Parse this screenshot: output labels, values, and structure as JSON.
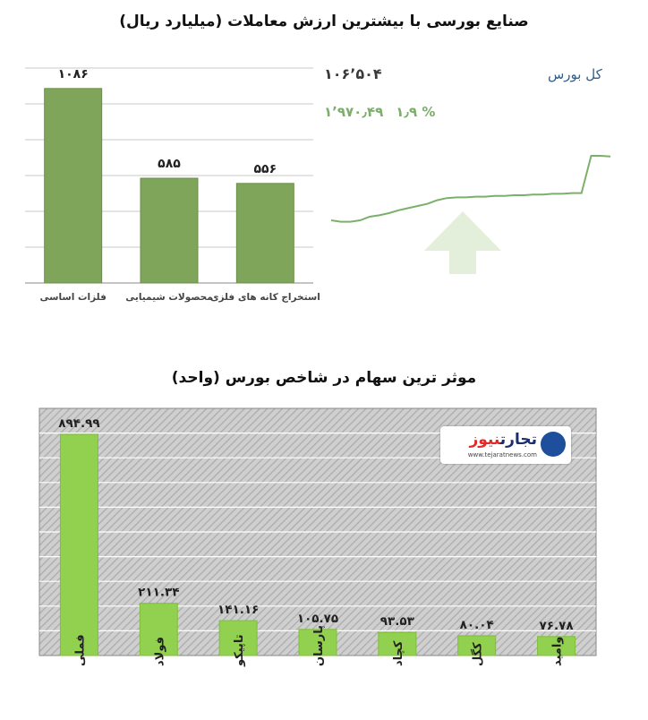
{
  "top_title": "صنایع بورسی با بیشترین ارزش معاملات  (میلیارد ریال)",
  "bottom_title": "موثر ترین سهام در شاخص بورس (واحد)",
  "index_panel": {
    "name": "کل بورس",
    "value": "۱۰۶٬۵۰۴",
    "change": "۱٬۹۷۰٫۴۹",
    "change_percent": "۱٫۹ %",
    "line_color": "#7bb06a",
    "arrow_color": "#e3efda",
    "trend": [
      0.1,
      0.08,
      0.08,
      0.1,
      0.15,
      0.17,
      0.2,
      0.24,
      0.27,
      0.3,
      0.33,
      0.38,
      0.41,
      0.42,
      0.42,
      0.43,
      0.43,
      0.44,
      0.44,
      0.45,
      0.45,
      0.46,
      0.46,
      0.47,
      0.47,
      0.48,
      0.48,
      1.0,
      1.0,
      0.99
    ]
  },
  "logo": {
    "name_part1": "تجارت",
    "name_part2": "نیوز",
    "url": "www.tejaratnews.com"
  },
  "chart_data": [
    {
      "type": "bar",
      "title": "صنایع بورسی با بیشترین ارزش معاملات  (میلیارد ریال)",
      "categories": [
        "فلزات اساسی",
        "محصولات شیمیایی",
        "استخراج کانه های فلزی"
      ],
      "values": [
        1086,
        585,
        556
      ],
      "value_labels": [
        "۱۰۸۶",
        "۵۸۵",
        "۵۵۶"
      ],
      "ylim": [
        0,
        1200
      ],
      "grid": true,
      "bar_color": "#7fa55a"
    },
    {
      "type": "bar",
      "title": "موثر ترین سهام در شاخص بورس (واحد)",
      "categories": [
        "فملی",
        "فولاد",
        "تاپیکو",
        "پارسان",
        "کچاد",
        "کگل",
        "وامید"
      ],
      "values": [
        894.99,
        211.34,
        141.16,
        105.75,
        93.53,
        80.04,
        76.78
      ],
      "value_labels": [
        "۸۹۴.۹۹",
        "۲۱۱.۳۴",
        "۱۴۱.۱۶",
        "۱۰۵.۷۵",
        "۹۳.۵۳",
        "۸۰.۰۴",
        "۷۶.۷۸"
      ],
      "ylim": [
        0,
        1000
      ],
      "grid": true,
      "bar_color": "#92d050"
    }
  ]
}
